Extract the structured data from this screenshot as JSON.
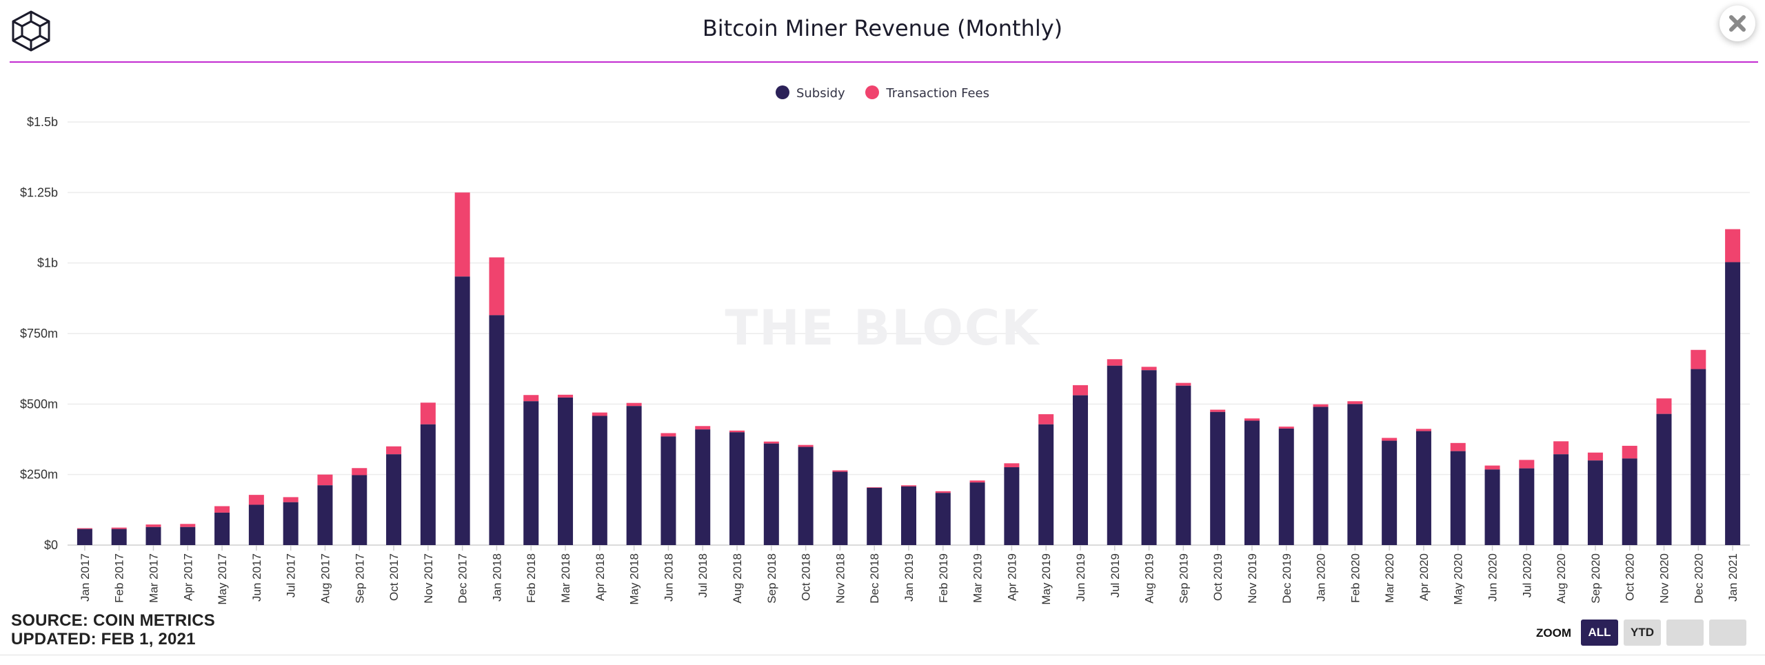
{
  "header": {
    "title": "Bitcoin Miner Revenue (Monthly)",
    "logo_icon": "cube-logo-icon",
    "close_icon": "close-icon"
  },
  "watermark": "THE BLOCK",
  "colors": {
    "subsidy": "#2b2158",
    "fees": "#f0436e",
    "accent_rule": "#c22bd1"
  },
  "legend": [
    {
      "label": "Subsidy",
      "color": "#2b2158"
    },
    {
      "label": "Transaction Fees",
      "color": "#f0436e"
    }
  ],
  "footer": {
    "source": "SOURCE: COIN METRICS",
    "updated": "UPDATED: FEB 1, 2021"
  },
  "zoom": {
    "label": "ZOOM",
    "options": [
      "ALL",
      "YTD",
      "",
      ""
    ],
    "selected": "ALL"
  },
  "chart_data": {
    "type": "bar",
    "stacked": true,
    "title": "Bitcoin Miner Revenue (Monthly)",
    "ylim": [
      0,
      1500
    ],
    "y_unit": "millions USD",
    "y_ticks": [
      0,
      250,
      500,
      750,
      1000,
      1250,
      1500
    ],
    "y_tick_labels": [
      "$0",
      "$250m",
      "$500m",
      "$750m",
      "$1b",
      "$1.25b",
      "$1.5b"
    ],
    "grid": true,
    "legend_position": "top-center",
    "categories": [
      "Jan 2017",
      "Feb 2017",
      "Mar 2017",
      "Apr 2017",
      "May 2017",
      "Jun 2017",
      "Jul 2017",
      "Aug 2017",
      "Sep 2017",
      "Oct 2017",
      "Nov 2017",
      "Dec 2017",
      "Jan 2018",
      "Feb 2018",
      "Mar 2018",
      "Apr 2018",
      "May 2018",
      "Jun 2018",
      "Jul 2018",
      "Aug 2018",
      "Sep 2018",
      "Oct 2018",
      "Nov 2018",
      "Dec 2018",
      "Jan 2019",
      "Feb 2019",
      "Mar 2019",
      "Apr 2019",
      "May 2019",
      "Jun 2019",
      "Jul 2019",
      "Aug 2019",
      "Sep 2019",
      "Oct 2019",
      "Nov 2019",
      "Dec 2019",
      "Jan 2020",
      "Feb 2020",
      "Mar 2020",
      "Apr 2020",
      "May 2020",
      "Jun 2020",
      "Jul 2020",
      "Aug 2020",
      "Sep 2020",
      "Oct 2020",
      "Nov 2020",
      "Dec 2020",
      "Jan 2021"
    ],
    "series": [
      {
        "name": "Subsidy",
        "values": [
          57,
          57,
          64,
          64,
          115,
          143,
          152,
          212,
          248,
          322,
          428,
          952,
          815,
          510,
          523,
          458,
          493,
          385,
          410,
          400,
          360,
          348,
          260,
          203,
          208,
          185,
          222,
          276,
          428,
          531,
          636,
          620,
          565,
          472,
          441,
          413,
          490,
          500,
          370,
          404,
          333,
          268,
          272,
          322,
          300,
          307,
          465,
          624,
          1003
        ]
      },
      {
        "name": "Transaction Fees",
        "values": [
          3,
          5,
          9,
          11,
          23,
          35,
          18,
          38,
          25,
          28,
          77,
          298,
          205,
          22,
          10,
          12,
          11,
          12,
          12,
          6,
          7,
          7,
          5,
          2,
          4,
          6,
          7,
          14,
          36,
          36,
          23,
          12,
          10,
          8,
          8,
          7,
          9,
          10,
          10,
          8,
          29,
          14,
          30,
          46,
          28,
          45,
          55,
          68,
          117
        ]
      }
    ]
  }
}
